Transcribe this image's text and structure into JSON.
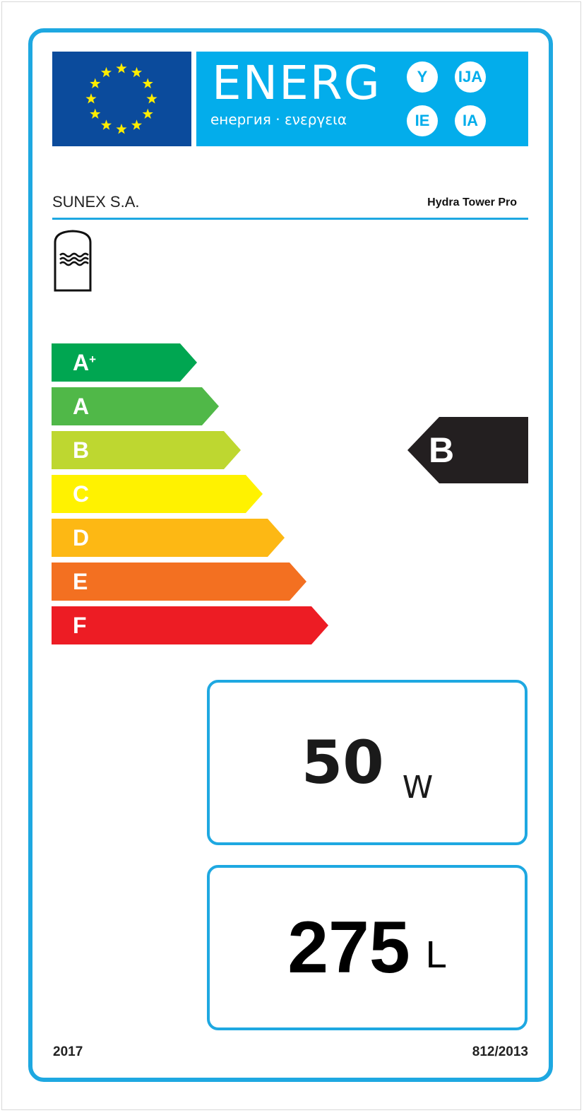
{
  "header": {
    "energy_word": "ENERG",
    "energy_subtitle": "енергия · ενεργεια",
    "suffixes": [
      "Y",
      "IJA",
      "IE",
      "IA"
    ],
    "flag_star_count": 12
  },
  "supplier": "SUNEX S.A.",
  "model": "Hydra Tower Pro",
  "product_icon": "water-tank-icon",
  "scale": [
    {
      "letter": "A",
      "sup": "+",
      "color": "#00a651"
    },
    {
      "letter": "A",
      "sup": "",
      "color": "#50b848"
    },
    {
      "letter": "B",
      "sup": "",
      "color": "#bed730"
    },
    {
      "letter": "C",
      "sup": "",
      "color": "#fff200"
    },
    {
      "letter": "D",
      "sup": "",
      "color": "#fdb814"
    },
    {
      "letter": "E",
      "sup": "",
      "color": "#f37021"
    },
    {
      "letter": "F",
      "sup": "",
      "color": "#ed1c24"
    }
  ],
  "rating": {
    "class": "B",
    "color": "#231f20"
  },
  "standing_loss": {
    "value": "50",
    "unit": "W"
  },
  "volume": {
    "value": "275",
    "unit": "L"
  },
  "footer": {
    "year": "2017",
    "regulation": "812/2013"
  },
  "colors": {
    "frame": "#1ea8e1",
    "flag": "#0b4b9c",
    "star": "#ffed00",
    "energy_band": "#03adeb"
  }
}
